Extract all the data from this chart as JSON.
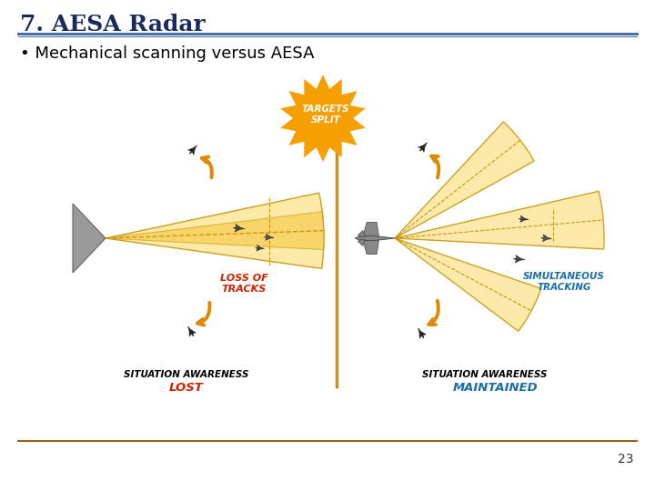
{
  "title": "7. AESA Radar",
  "bullet": "• Mechanical scanning versus AESA",
  "title_color": "#1a2a5e",
  "title_fontsize": 18,
  "bullet_fontsize": 13,
  "header_line_color": "#4a6fa5",
  "footer_line_color": "#8b6914",
  "divider_color": "#d4900a",
  "page_number": "23",
  "background_color": "#ffffff",
  "left_label_top": "LOSS OF\nTRACKS",
  "left_label_top_color": "#cc2200",
  "left_bottom_label1": "SITUATION AWARENESS",
  "left_bottom_label2": "LOST",
  "left_bottom_label2_color": "#cc2200",
  "right_label_top": "SIMULTANEOUS\nTRACKING",
  "right_label_top_color": "#1a6ea8",
  "right_bottom_label1": "SITUATION AWARENESS",
  "right_bottom_label2": "MAINTAINED",
  "right_bottom_label2_color": "#1a6ea8",
  "burst_label": "TARGETS\nSPLIT",
  "burst_color": "#f5a000",
  "burst_text_color": "#ffffff",
  "beam_fill_light": "#fde8a0",
  "beam_fill_mid": "#f5c842",
  "beam_edge_color": "#c8960c",
  "radar_body_color": "#888888",
  "arrow_color": "#e08800"
}
